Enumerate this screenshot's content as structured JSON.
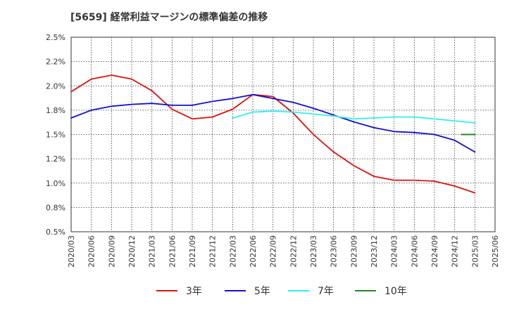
{
  "chart_data": {
    "type": "line",
    "title": "[5659]  経常利益マージンの標準偏差の推移",
    "xlabel": "",
    "ylabel": "",
    "x": [
      "2020/03",
      "2020/06",
      "2020/09",
      "2020/12",
      "2021/03",
      "2021/06",
      "2021/09",
      "2021/12",
      "2022/03",
      "2022/06",
      "2022/09",
      "2022/12",
      "2023/03",
      "2023/06",
      "2023/09",
      "2023/12",
      "2024/03",
      "2024/06",
      "2024/09",
      "2024/12",
      "2025/03",
      "2025/06"
    ],
    "ylim": [
      0.5,
      2.5
    ],
    "yticks": [
      "0.5%",
      "0.8%",
      "1.0%",
      "1.2%",
      "1.5%",
      "1.8%",
      "2.0%",
      "2.2%",
      "2.5%"
    ],
    "ytick_values": [
      0.5,
      0.75,
      1.0,
      1.25,
      1.5,
      1.75,
      2.0,
      2.25,
      2.5
    ],
    "grid": true,
    "legend_position": "bottom",
    "series": [
      {
        "name": "3年",
        "color": "#dd1111",
        "points": [
          [
            "2020/03",
            1.94
          ],
          [
            "2020/06",
            2.07
          ],
          [
            "2020/09",
            2.11
          ],
          [
            "2020/12",
            2.07
          ],
          [
            "2021/03",
            1.95
          ],
          [
            "2021/06",
            1.76
          ],
          [
            "2021/09",
            1.66
          ],
          [
            "2021/12",
            1.68
          ],
          [
            "2022/03",
            1.76
          ],
          [
            "2022/06",
            1.91
          ],
          [
            "2022/09",
            1.89
          ],
          [
            "2022/12",
            1.72
          ],
          [
            "2023/03",
            1.5
          ],
          [
            "2023/06",
            1.32
          ],
          [
            "2023/09",
            1.18
          ],
          [
            "2023/12",
            1.07
          ],
          [
            "2024/03",
            1.03
          ],
          [
            "2024/06",
            1.03
          ],
          [
            "2024/09",
            1.02
          ],
          [
            "2024/12",
            0.97
          ],
          [
            "2025/03",
            0.9
          ]
        ]
      },
      {
        "name": "5年",
        "color": "#1111cc",
        "points": [
          [
            "2020/03",
            1.67
          ],
          [
            "2020/06",
            1.75
          ],
          [
            "2020/09",
            1.79
          ],
          [
            "2020/12",
            1.81
          ],
          [
            "2021/03",
            1.82
          ],
          [
            "2021/06",
            1.8
          ],
          [
            "2021/09",
            1.8
          ],
          [
            "2021/12",
            1.84
          ],
          [
            "2022/03",
            1.87
          ],
          [
            "2022/06",
            1.91
          ],
          [
            "2022/09",
            1.87
          ],
          [
            "2022/12",
            1.83
          ],
          [
            "2023/03",
            1.77
          ],
          [
            "2023/06",
            1.7
          ],
          [
            "2023/09",
            1.63
          ],
          [
            "2023/12",
            1.57
          ],
          [
            "2024/03",
            1.53
          ],
          [
            "2024/06",
            1.52
          ],
          [
            "2024/09",
            1.5
          ],
          [
            "2024/12",
            1.44
          ],
          [
            "2025/03",
            1.32
          ]
        ]
      },
      {
        "name": "7年",
        "color": "#33eeee",
        "points": [
          [
            "2022/03",
            1.67
          ],
          [
            "2022/06",
            1.73
          ],
          [
            "2022/09",
            1.74
          ],
          [
            "2022/12",
            1.73
          ],
          [
            "2023/03",
            1.71
          ],
          [
            "2023/06",
            1.69
          ],
          [
            "2023/09",
            1.66
          ],
          [
            "2023/12",
            1.67
          ],
          [
            "2024/03",
            1.68
          ],
          [
            "2024/06",
            1.68
          ],
          [
            "2024/09",
            1.66
          ],
          [
            "2024/12",
            1.64
          ],
          [
            "2025/03",
            1.62
          ]
        ]
      },
      {
        "name": "10年",
        "color": "#228822",
        "points": [
          [
            "2025/01",
            1.5
          ],
          [
            "2025/03",
            1.5
          ]
        ]
      }
    ]
  }
}
